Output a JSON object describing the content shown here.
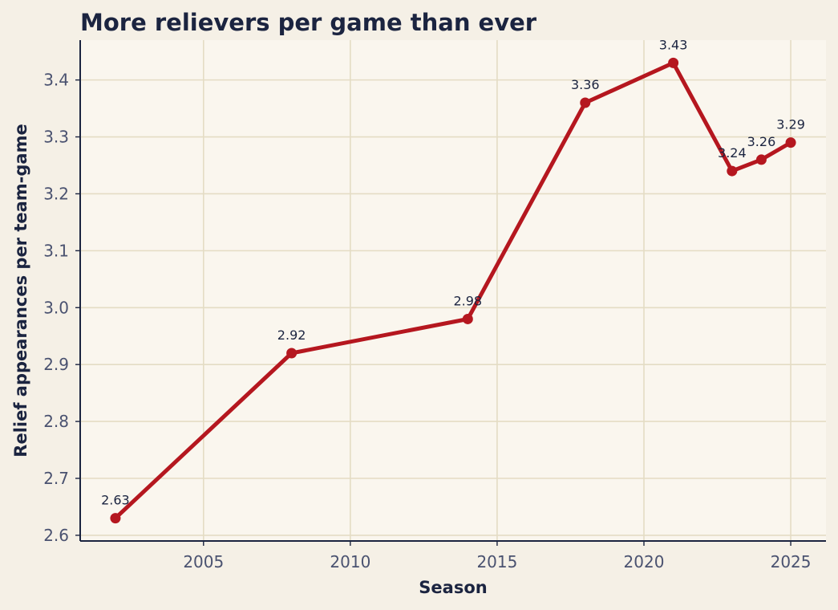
{
  "chart_data": {
    "type": "line",
    "title": "More relievers per game than ever",
    "xlabel": "Season",
    "ylabel": "Relief appearances per team-game",
    "xlim": [
      2000.8,
      2026.2
    ],
    "ylim": [
      2.59,
      3.47
    ],
    "xticks": [
      2005,
      2010,
      2015,
      2020,
      2025
    ],
    "yticks": [
      2.6,
      2.7,
      2.8,
      2.9,
      3.0,
      3.1,
      3.2,
      3.3,
      3.4
    ],
    "ytick_labels": [
      "2.6",
      "2.7",
      "2.8",
      "2.9",
      "3.0",
      "3.1",
      "3.2",
      "3.3",
      "3.4"
    ],
    "grid": true,
    "series": [
      {
        "x": [
          2002,
          2008,
          2014,
          2018,
          2021,
          2023,
          2024,
          2025
        ],
        "y": [
          2.63,
          2.92,
          2.98,
          3.36,
          3.43,
          3.24,
          3.26,
          3.29
        ],
        "labels": [
          "2.63",
          "2.92",
          "2.98",
          "3.36",
          "3.43",
          "3.24",
          "3.26",
          "3.29"
        ],
        "color": "#b5171f"
      }
    ],
    "colors": {
      "page_background": "#f5f0e6",
      "plot_background": "#faf6ee",
      "grid": "#e4dcc4",
      "axis": "#1b2440",
      "tick_text": "#4a5270"
    }
  }
}
